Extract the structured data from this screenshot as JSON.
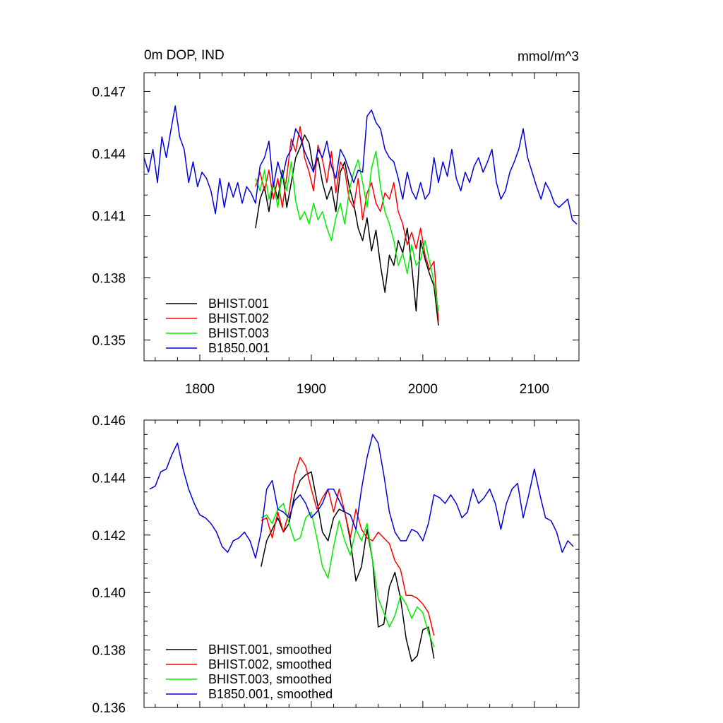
{
  "chart_data": [
    {
      "type": "line",
      "title": "0m DOP, IND",
      "units": "mmol/m^3",
      "xlim": [
        1750,
        2140
      ],
      "ylim": [
        0.134,
        0.1479
      ],
      "xticks": [
        1800,
        1900,
        2000,
        2100
      ],
      "yticks": [
        0.135,
        0.138,
        0.141,
        0.144,
        0.147
      ],
      "ytick_labels": [
        "0.135",
        "0.138",
        "0.141",
        "0.144",
        "0.147"
      ],
      "legend_position": "bottom-left",
      "series": [
        {
          "name": "BHIST.001",
          "color": "#000000",
          "x": [
            1850,
            1854,
            1858,
            1862,
            1866,
            1870,
            1874,
            1878,
            1882,
            1886,
            1890,
            1894,
            1898,
            1902,
            1906,
            1910,
            1914,
            1918,
            1922,
            1926,
            1930,
            1934,
            1938,
            1942,
            1946,
            1950,
            1954,
            1958,
            1962,
            1966,
            1970,
            1974,
            1978,
            1982,
            1986,
            1990,
            1994,
            1998,
            2002,
            2006,
            2010,
            2014
          ],
          "y": [
            0.1404,
            0.1418,
            0.1424,
            0.1412,
            0.1426,
            0.1418,
            0.1432,
            0.1414,
            0.1426,
            0.1438,
            0.1443,
            0.1449,
            0.1445,
            0.1432,
            0.1438,
            0.1426,
            0.1418,
            0.1424,
            0.1412,
            0.1431,
            0.1436,
            0.1424,
            0.1416,
            0.1404,
            0.1398,
            0.1409,
            0.1393,
            0.1403,
            0.1386,
            0.1373,
            0.1391,
            0.1386,
            0.1398,
            0.1392,
            0.1404,
            0.1386,
            0.1364,
            0.1398,
            0.1389,
            0.1382,
            0.1376,
            0.1357
          ]
        },
        {
          "name": "BHIST.002",
          "color": "#ff0000",
          "x": [
            1850,
            1854,
            1858,
            1862,
            1866,
            1870,
            1874,
            1878,
            1882,
            1886,
            1890,
            1894,
            1898,
            1902,
            1906,
            1910,
            1914,
            1918,
            1922,
            1926,
            1930,
            1934,
            1938,
            1942,
            1946,
            1950,
            1954,
            1958,
            1962,
            1966,
            1970,
            1974,
            1978,
            1982,
            1986,
            1990,
            1994,
            1998,
            2002,
            2006,
            2010,
            2014
          ],
          "y": [
            0.1424,
            0.1431,
            0.1422,
            0.1432,
            0.1418,
            0.1428,
            0.1414,
            0.1429,
            0.1447,
            0.1441,
            0.1453,
            0.1438,
            0.1431,
            0.1422,
            0.1444,
            0.1437,
            0.1426,
            0.1441,
            0.1421,
            0.1436,
            0.1432,
            0.1418,
            0.1414,
            0.1428,
            0.1408,
            0.1421,
            0.1426,
            0.1416,
            0.1412,
            0.1421,
            0.1418,
            0.1426,
            0.1412,
            0.1406,
            0.1396,
            0.1402,
            0.1394,
            0.1404,
            0.1391,
            0.1384,
            0.1388,
            0.1359
          ]
        },
        {
          "name": "BHIST.003",
          "color": "#00ee00",
          "x": [
            1850,
            1854,
            1858,
            1862,
            1866,
            1870,
            1874,
            1878,
            1882,
            1886,
            1890,
            1894,
            1898,
            1902,
            1906,
            1910,
            1914,
            1918,
            1922,
            1926,
            1930,
            1934,
            1938,
            1942,
            1946,
            1950,
            1954,
            1958,
            1962,
            1966,
            1970,
            1974,
            1978,
            1982,
            1986,
            1990,
            1994,
            1998,
            2002,
            2006,
            2010,
            2014
          ],
          "y": [
            0.1428,
            0.1422,
            0.1432,
            0.1418,
            0.1426,
            0.1414,
            0.1431,
            0.1422,
            0.1436,
            0.1417,
            0.1408,
            0.1412,
            0.1406,
            0.1416,
            0.1408,
            0.1412,
            0.1404,
            0.1398,
            0.1409,
            0.1416,
            0.1406,
            0.1422,
            0.1431,
            0.1437,
            0.1426,
            0.1414,
            0.1433,
            0.1441,
            0.1424,
            0.1412,
            0.1406,
            0.1398,
            0.1386,
            0.1392,
            0.1382,
            0.1396,
            0.1386,
            0.1389,
            0.1398,
            0.1388,
            0.1378,
            0.1364
          ]
        },
        {
          "name": "B1850.001",
          "color": "#0000dd",
          "x": [
            1750,
            1754,
            1758,
            1762,
            1766,
            1770,
            1774,
            1778,
            1782,
            1786,
            1790,
            1794,
            1798,
            1802,
            1806,
            1810,
            1814,
            1818,
            1822,
            1826,
            1830,
            1834,
            1838,
            1842,
            1846,
            1850,
            1854,
            1858,
            1862,
            1866,
            1870,
            1874,
            1878,
            1882,
            1886,
            1890,
            1894,
            1898,
            1902,
            1906,
            1910,
            1914,
            1918,
            1922,
            1926,
            1930,
            1934,
            1938,
            1942,
            1946,
            1950,
            1954,
            1958,
            1962,
            1966,
            1970,
            1974,
            1978,
            1982,
            1986,
            1990,
            1994,
            1998,
            2002,
            2006,
            2010,
            2014,
            2018,
            2022,
            2026,
            2030,
            2034,
            2038,
            2042,
            2046,
            2050,
            2054,
            2058,
            2062,
            2066,
            2070,
            2074,
            2078,
            2082,
            2086,
            2090,
            2094,
            2098,
            2102,
            2106,
            2110,
            2114,
            2118,
            2122,
            2126,
            2130,
            2134,
            2138
          ],
          "y": [
            0.1438,
            0.1431,
            0.1442,
            0.1426,
            0.1448,
            0.1438,
            0.1451,
            0.1463,
            0.1448,
            0.1442,
            0.1426,
            0.1436,
            0.1424,
            0.1431,
            0.1428,
            0.1422,
            0.1411,
            0.1428,
            0.1414,
            0.1426,
            0.1419,
            0.1426,
            0.1416,
            0.1424,
            0.1421,
            0.1416,
            0.1434,
            0.1438,
            0.1446,
            0.1424,
            0.1436,
            0.1428,
            0.1438,
            0.1442,
            0.1452,
            0.1448,
            0.1441,
            0.1436,
            0.1431,
            0.1442,
            0.1438,
            0.1446,
            0.1434,
            0.1428,
            0.1442,
            0.1438,
            0.1432,
            0.1426,
            0.1432,
            0.1431,
            0.1458,
            0.1461,
            0.1455,
            0.1452,
            0.1442,
            0.1438,
            0.1436,
            0.1428,
            0.1418,
            0.1431,
            0.1422,
            0.1418,
            0.1426,
            0.1418,
            0.1421,
            0.1438,
            0.1426,
            0.1436,
            0.1429,
            0.1442,
            0.1428,
            0.1422,
            0.1431,
            0.1426,
            0.1434,
            0.1438,
            0.1431,
            0.1436,
            0.1442,
            0.1426,
            0.1418,
            0.1422,
            0.1431,
            0.1436,
            0.1442,
            0.1452,
            0.1438,
            0.1431,
            0.1424,
            0.1418,
            0.1426,
            0.1422,
            0.1416,
            0.1414,
            0.1416,
            0.1418,
            0.1408,
            0.1406
          ]
        }
      ]
    },
    {
      "type": "line",
      "xlim": [
        1750,
        2140
      ],
      "ylim": [
        0.136,
        0.146
      ],
      "xticks": [
        1800,
        1900,
        2000,
        2100
      ],
      "yticks": [
        0.136,
        0.138,
        0.14,
        0.142,
        0.144,
        0.146
      ],
      "ytick_labels": [
        "0.136",
        "0.138",
        "0.140",
        "0.142",
        "0.144",
        "0.146"
      ],
      "legend_position": "bottom-left",
      "series": [
        {
          "name": "BHIST.001, smoothed",
          "color": "#000000",
          "x": [
            1855,
            1860,
            1865,
            1870,
            1875,
            1880,
            1885,
            1890,
            1895,
            1900,
            1905,
            1910,
            1915,
            1920,
            1925,
            1930,
            1935,
            1940,
            1945,
            1950,
            1955,
            1960,
            1965,
            1970,
            1975,
            1980,
            1985,
            1990,
            1995,
            2000,
            2005,
            2010
          ],
          "y": [
            0.1409,
            0.1418,
            0.1422,
            0.1426,
            0.1421,
            0.1424,
            0.1434,
            0.1439,
            0.1441,
            0.1442,
            0.1432,
            0.1421,
            0.1418,
            0.1426,
            0.1429,
            0.1428,
            0.1418,
            0.1404,
            0.1409,
            0.1422,
            0.1411,
            0.1388,
            0.1389,
            0.1402,
            0.1407,
            0.1398,
            0.1384,
            0.1376,
            0.1378,
            0.1387,
            0.1388,
            0.1377
          ]
        },
        {
          "name": "BHIST.002, smoothed",
          "color": "#ff0000",
          "x": [
            1855,
            1860,
            1865,
            1870,
            1875,
            1880,
            1885,
            1890,
            1895,
            1900,
            1905,
            1910,
            1915,
            1920,
            1925,
            1930,
            1935,
            1940,
            1945,
            1950,
            1955,
            1960,
            1965,
            1970,
            1975,
            1980,
            1985,
            1990,
            1995,
            2000,
            2005,
            2010
          ],
          "y": [
            0.1425,
            0.1426,
            0.1419,
            0.1428,
            0.1421,
            0.1428,
            0.1441,
            0.1447,
            0.1444,
            0.1436,
            0.1429,
            0.1433,
            0.1436,
            0.1428,
            0.1436,
            0.1428,
            0.1419,
            0.1429,
            0.1422,
            0.1419,
            0.1418,
            0.1421,
            0.1419,
            0.1417,
            0.1411,
            0.1408,
            0.1399,
            0.1399,
            0.1398,
            0.1396,
            0.1393,
            0.1385
          ]
        },
        {
          "name": "BHIST.003, smoothed",
          "color": "#00ee00",
          "x": [
            1855,
            1860,
            1865,
            1870,
            1875,
            1880,
            1885,
            1890,
            1895,
            1900,
            1905,
            1910,
            1915,
            1920,
            1925,
            1930,
            1935,
            1940,
            1945,
            1950,
            1955,
            1960,
            1965,
            1970,
            1975,
            1980,
            1985,
            1990,
            1995,
            2000,
            2005,
            2010
          ],
          "y": [
            0.1426,
            0.1427,
            0.1424,
            0.1429,
            0.1431,
            0.1424,
            0.1418,
            0.1419,
            0.1426,
            0.1428,
            0.1419,
            0.1409,
            0.1405,
            0.1416,
            0.1425,
            0.1418,
            0.1413,
            0.1422,
            0.1418,
            0.1424,
            0.1411,
            0.1398,
            0.1393,
            0.1388,
            0.1392,
            0.1399,
            0.1396,
            0.1391,
            0.1395,
            0.1393,
            0.1386,
            0.1381
          ]
        },
        {
          "name": "B1850.001, smoothed",
          "color": "#0000dd",
          "x": [
            1755,
            1760,
            1765,
            1770,
            1775,
            1780,
            1785,
            1790,
            1795,
            1800,
            1805,
            1810,
            1815,
            1820,
            1825,
            1830,
            1835,
            1840,
            1845,
            1850,
            1855,
            1860,
            1865,
            1870,
            1875,
            1880,
            1885,
            1890,
            1895,
            1900,
            1905,
            1910,
            1915,
            1920,
            1925,
            1930,
            1935,
            1940,
            1945,
            1950,
            1955,
            1960,
            1965,
            1970,
            1975,
            1980,
            1985,
            1990,
            1995,
            2000,
            2005,
            2010,
            2015,
            2020,
            2025,
            2030,
            2035,
            2040,
            2045,
            2050,
            2055,
            2060,
            2065,
            2070,
            2075,
            2080,
            2085,
            2090,
            2095,
            2100,
            2105,
            2110,
            2115,
            2120,
            2125,
            2130,
            2135
          ],
          "y": [
            0.1436,
            0.1437,
            0.1442,
            0.1443,
            0.1448,
            0.1452,
            0.1443,
            0.1436,
            0.1431,
            0.1427,
            0.1426,
            0.1424,
            0.1421,
            0.1416,
            0.1414,
            0.1418,
            0.1419,
            0.1421,
            0.1418,
            0.1412,
            0.1421,
            0.1436,
            0.1439,
            0.1429,
            0.1428,
            0.1426,
            0.1432,
            0.1434,
            0.1431,
            0.1426,
            0.1428,
            0.1431,
            0.1436,
            0.1436,
            0.1432,
            0.1428,
            0.1427,
            0.1422,
            0.1436,
            0.1447,
            0.1455,
            0.1452,
            0.1441,
            0.1428,
            0.1421,
            0.1418,
            0.1418,
            0.1422,
            0.1421,
            0.1418,
            0.1424,
            0.1434,
            0.1433,
            0.1431,
            0.1434,
            0.1431,
            0.1426,
            0.1428,
            0.1436,
            0.1431,
            0.1433,
            0.1436,
            0.1431,
            0.1422,
            0.1431,
            0.1436,
            0.1438,
            0.1426,
            0.1434,
            0.1443,
            0.1434,
            0.1426,
            0.1425,
            0.1421,
            0.1414,
            0.1418,
            0.1416
          ]
        }
      ]
    }
  ]
}
